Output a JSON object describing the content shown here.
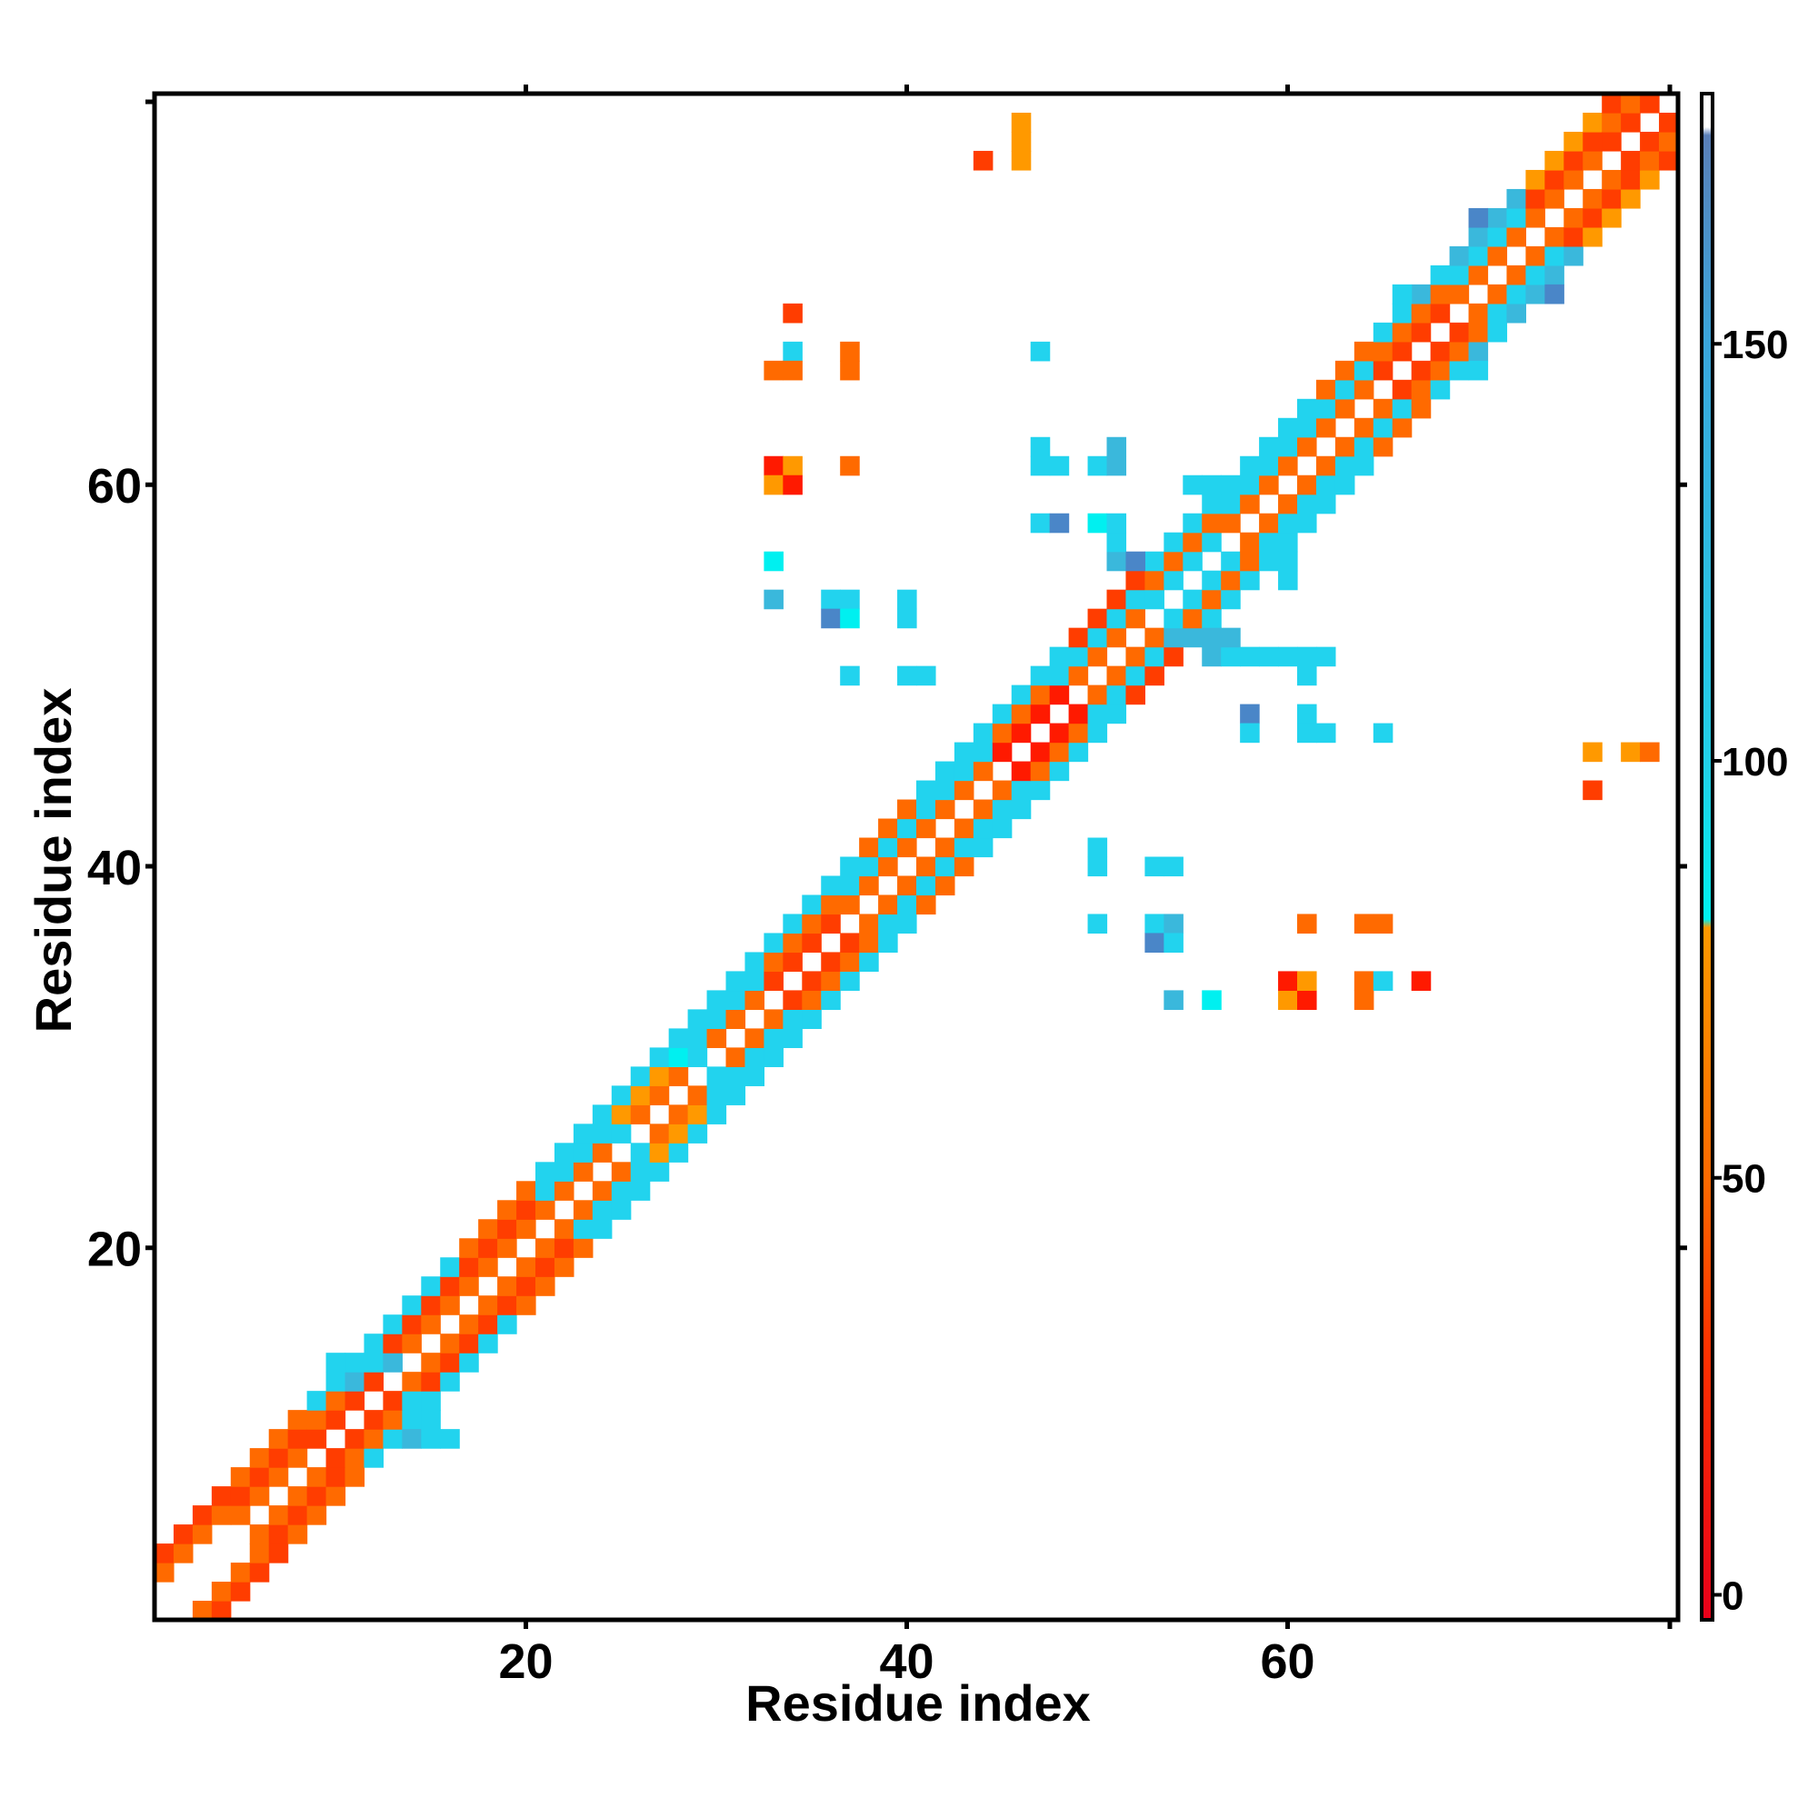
{
  "chart_data": {
    "type": "heatmap",
    "title": "",
    "xlabel": "Residue index",
    "ylabel": "Residue index",
    "xlim": [
      1,
      80
    ],
    "ylim": [
      1,
      80
    ],
    "x_ticks": [
      20,
      40,
      60
    ],
    "y_ticks": [
      20,
      40,
      60
    ],
    "colorbar": {
      "ticks": [
        0,
        50,
        100,
        150
      ],
      "range": [
        -3,
        180
      ],
      "stops": [
        {
          "value": -3,
          "color": "#e8001a"
        },
        {
          "value": 30,
          "color": "#ff3300"
        },
        {
          "value": 50,
          "color": "#ff6a00"
        },
        {
          "value": 80,
          "color": "#ff9900"
        },
        {
          "value": 81,
          "color": "#00f0f0"
        },
        {
          "value": 100,
          "color": "#22d0e8"
        },
        {
          "value": 150,
          "color": "#3aa6dc"
        },
        {
          "value": 175,
          "color": "#5a7fb8"
        },
        {
          "value": 176,
          "color": "#ffffff"
        },
        {
          "value": 180,
          "color": "#ffffff"
        }
      ]
    },
    "palette": {
      "R": "#ff1a00",
      "r": "#ff3d00",
      "o": "#ff6a00",
      "y": "#ff9900",
      "c": "#22d3ee",
      "b": "#3ab8dc",
      "a": "#00f0f0",
      "d": "#4a86c8"
    },
    "diagonal_band": [
      {
        "i": 1,
        "pattern": [
          ".",
          ".",
          "o",
          "r"
        ]
      },
      {
        "i": 5,
        "pattern": [
          ".",
          "o",
          "r",
          "o"
        ]
      },
      {
        "i": 9,
        "pattern": [
          ".",
          "r",
          "o",
          "c"
        ]
      },
      {
        "i": 13,
        "pattern": [
          ".",
          "o",
          "r",
          "c"
        ]
      },
      {
        "i": 17,
        "pattern": [
          ".",
          "o",
          "r",
          "o"
        ]
      },
      {
        "i": 21,
        "pattern": [
          ".",
          "o",
          "c",
          "c"
        ]
      },
      {
        "i": 25,
        "pattern": [
          ".",
          "o",
          "y",
          "c"
        ]
      },
      {
        "i": 29,
        "pattern": [
          ".",
          "o",
          "c",
          "c"
        ]
      },
      {
        "i": 33,
        "pattern": [
          ".",
          "r",
          "o",
          "c"
        ]
      },
      {
        "i": 37,
        "pattern": [
          ".",
          "o",
          "c",
          "o"
        ]
      },
      {
        "i": 41,
        "pattern": [
          ".",
          "o",
          "c",
          "c"
        ]
      },
      {
        "i": 45,
        "pattern": [
          ".",
          "R",
          "o",
          "c"
        ]
      },
      {
        "i": 49,
        "pattern": [
          ".",
          "o",
          "c",
          "r"
        ]
      },
      {
        "i": 53,
        "pattern": [
          ".",
          "c",
          "o",
          "c"
        ]
      },
      {
        "i": 57,
        "pattern": [
          ".",
          "o",
          "c",
          "c"
        ]
      },
      {
        "i": 61,
        "pattern": [
          ".",
          "o",
          "c",
          "o"
        ]
      },
      {
        "i": 65,
        "pattern": [
          ".",
          "r",
          "o",
          "c"
        ]
      },
      {
        "i": 69,
        "pattern": [
          ".",
          "o",
          "c",
          "b"
        ]
      },
      {
        "i": 73,
        "pattern": [
          ".",
          "o",
          "r",
          "y"
        ]
      },
      {
        "i": 77,
        "pattern": [
          ".",
          "r",
          "o",
          "r"
        ]
      }
    ],
    "extra_cells": [
      [
        10,
        13,
        "c"
      ],
      [
        10,
        14,
        "c"
      ],
      [
        11,
        13,
        "b"
      ],
      [
        11,
        14,
        "c"
      ],
      [
        12,
        14,
        "c"
      ],
      [
        13,
        14,
        "b"
      ],
      [
        14,
        10,
        "b"
      ],
      [
        14,
        11,
        "c"
      ],
      [
        14,
        12,
        "c"
      ],
      [
        15,
        10,
        "c"
      ],
      [
        15,
        11,
        "c"
      ],
      [
        16,
        10,
        "c"
      ],
      [
        24,
        26,
        "c"
      ],
      [
        25,
        26,
        "c"
      ],
      [
        26,
        24,
        "c"
      ],
      [
        26,
        25,
        "c"
      ],
      [
        28,
        30,
        "a"
      ],
      [
        29,
        30,
        "c"
      ],
      [
        30,
        28,
        "c"
      ],
      [
        30,
        29,
        "c"
      ],
      [
        31,
        34,
        "c"
      ],
      [
        32,
        34,
        "c"
      ],
      [
        34,
        31,
        "c"
      ],
      [
        34,
        32,
        "c"
      ],
      [
        37,
        40,
        "c"
      ],
      [
        38,
        40,
        "c"
      ],
      [
        40,
        37,
        "c"
      ],
      [
        40,
        38,
        "c"
      ],
      [
        43,
        46,
        "c"
      ],
      [
        44,
        46,
        "c"
      ],
      [
        46,
        43,
        "c"
      ],
      [
        46,
        44,
        "c"
      ],
      [
        47,
        50,
        "c"
      ],
      [
        48,
        50,
        "c"
      ],
      [
        50,
        47,
        "c"
      ],
      [
        50,
        48,
        "c"
      ],
      [
        51,
        56,
        "b"
      ],
      [
        51,
        57,
        "c"
      ],
      [
        52,
        56,
        "d"
      ],
      [
        53,
        56,
        "c"
      ],
      [
        56,
        51,
        "b"
      ],
      [
        57,
        51,
        "c"
      ],
      [
        56,
        52,
        "d"
      ],
      [
        55,
        60,
        "c"
      ],
      [
        56,
        60,
        "c"
      ],
      [
        60,
        55,
        "c"
      ],
      [
        60,
        56,
        "c"
      ],
      [
        61,
        64,
        "c"
      ],
      [
        62,
        64,
        "c"
      ],
      [
        64,
        61,
        "c"
      ],
      [
        64,
        62,
        "c"
      ],
      [
        66,
        70,
        "c"
      ],
      [
        67,
        70,
        "b"
      ],
      [
        70,
        66,
        "c"
      ],
      [
        70,
        67,
        "b"
      ],
      [
        70,
        74,
        "d"
      ],
      [
        71,
        74,
        "b"
      ],
      [
        74,
        70,
        "d"
      ],
      [
        74,
        71,
        "b"
      ],
      [
        44,
        77,
        "r"
      ],
      [
        46,
        77,
        "y"
      ],
      [
        46,
        78,
        "y"
      ],
      [
        46,
        79,
        "y"
      ],
      [
        34,
        69,
        "r"
      ],
      [
        34,
        67,
        "c"
      ],
      [
        33,
        66,
        "o"
      ],
      [
        34,
        66,
        "o"
      ],
      [
        37,
        66,
        "o"
      ],
      [
        37,
        67,
        "o"
      ],
      [
        33,
        61,
        "R"
      ],
      [
        33,
        60,
        "y"
      ],
      [
        34,
        61,
        "y"
      ],
      [
        34,
        60,
        "R"
      ],
      [
        37,
        61,
        "o"
      ],
      [
        47,
        67,
        "c"
      ],
      [
        47,
        62,
        "c"
      ],
      [
        47,
        61,
        "c"
      ],
      [
        48,
        61,
        "c"
      ],
      [
        50,
        61,
        "c"
      ],
      [
        51,
        61,
        "b"
      ],
      [
        51,
        62,
        "b"
      ],
      [
        47,
        58,
        "c"
      ],
      [
        48,
        58,
        "d"
      ],
      [
        50,
        58,
        "a"
      ],
      [
        51,
        58,
        "c"
      ],
      [
        33,
        56,
        "a"
      ],
      [
        33,
        54,
        "b"
      ],
      [
        36,
        54,
        "c"
      ],
      [
        37,
        54,
        "c"
      ],
      [
        36,
        53,
        "d"
      ],
      [
        37,
        53,
        "a"
      ],
      [
        40,
        54,
        "c"
      ],
      [
        40,
        53,
        "c"
      ],
      [
        37,
        50,
        "c"
      ],
      [
        40,
        50,
        "c"
      ],
      [
        41,
        50,
        "c"
      ],
      [
        54,
        52,
        "b"
      ],
      [
        55,
        52,
        "b"
      ],
      [
        56,
        52,
        "b"
      ],
      [
        57,
        52,
        "b"
      ],
      [
        57,
        51,
        "c"
      ],
      [
        58,
        51,
        "c"
      ],
      [
        59,
        51,
        "c"
      ],
      [
        60,
        51,
        "c"
      ],
      [
        61,
        51,
        "c"
      ],
      [
        62,
        51,
        "c"
      ],
      [
        61,
        50,
        "c"
      ],
      [
        58,
        48,
        "d"
      ],
      [
        58,
        47,
        "c"
      ],
      [
        61,
        48,
        "c"
      ],
      [
        61,
        47,
        "c"
      ],
      [
        62,
        47,
        "c"
      ],
      [
        65,
        47,
        "c"
      ],
      [
        76,
        46,
        "y"
      ],
      [
        78,
        46,
        "y"
      ],
      [
        79,
        46,
        "o"
      ],
      [
        76,
        44,
        "r"
      ],
      [
        50,
        41,
        "c"
      ],
      [
        50,
        40,
        "c"
      ],
      [
        53,
        40,
        "c"
      ],
      [
        54,
        40,
        "c"
      ],
      [
        50,
        37,
        "c"
      ],
      [
        53,
        37,
        "c"
      ],
      [
        53,
        36,
        "d"
      ],
      [
        54,
        37,
        "b"
      ],
      [
        54,
        36,
        "c"
      ],
      [
        61,
        37,
        "o"
      ],
      [
        64,
        37,
        "o"
      ],
      [
        65,
        37,
        "o"
      ],
      [
        54,
        33,
        "b"
      ],
      [
        56,
        33,
        "a"
      ],
      [
        60,
        33,
        "y"
      ],
      [
        61,
        33,
        "R"
      ],
      [
        60,
        34,
        "R"
      ],
      [
        61,
        34,
        "y"
      ],
      [
        64,
        33,
        "o"
      ],
      [
        64,
        34,
        "o"
      ],
      [
        65,
        34,
        "c"
      ],
      [
        67,
        34,
        "R"
      ]
    ]
  }
}
